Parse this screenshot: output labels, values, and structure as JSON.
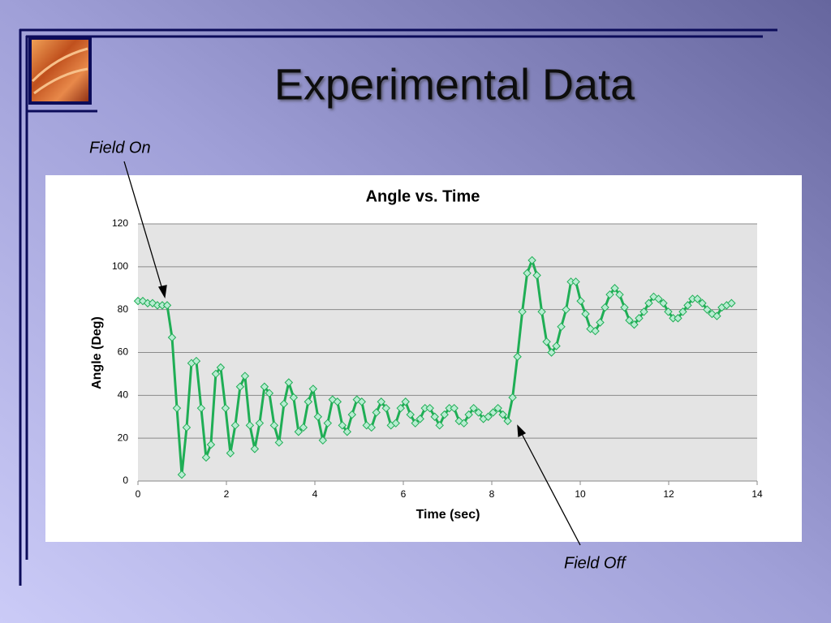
{
  "slide": {
    "title": "Experimental Data"
  },
  "chart_data": {
    "type": "line",
    "title": "Angle vs. Time",
    "x_label": "Time (sec)",
    "y_label": "Angle (Deg)",
    "annotations": [
      "Field On",
      "Field Off"
    ],
    "color": "#1fae55",
    "marker_fill": "#b8ecd2",
    "grid": true,
    "xlim": [
      0,
      14
    ],
    "xticks": [
      0,
      2,
      4,
      6,
      8,
      10,
      12,
      14
    ],
    "ylim": [
      0,
      120
    ],
    "yticks": [
      0,
      20,
      40,
      60,
      80,
      100,
      120
    ],
    "x": [
      0,
      0.11,
      0.22,
      0.33,
      0.44,
      0.55,
      0.66,
      0.77,
      0.88,
      0.99,
      1.1,
      1.21,
      1.32,
      1.43,
      1.54,
      1.65,
      1.76,
      1.87,
      1.98,
      2.09,
      2.2,
      2.31,
      2.42,
      2.53,
      2.64,
      2.75,
      2.86,
      2.97,
      3.08,
      3.19,
      3.3,
      3.41,
      3.52,
      3.63,
      3.74,
      3.85,
      3.96,
      4.07,
      4.18,
      4.29,
      4.4,
      4.51,
      4.62,
      4.73,
      4.84,
      4.95,
      5.06,
      5.17,
      5.28,
      5.39,
      5.5,
      5.61,
      5.72,
      5.83,
      5.94,
      6.05,
      6.16,
      6.27,
      6.38,
      6.49,
      6.6,
      6.71,
      6.82,
      6.93,
      7.04,
      7.15,
      7.26,
      7.37,
      7.48,
      7.59,
      7.7,
      7.81,
      7.92,
      8.03,
      8.14,
      8.25,
      8.36,
      8.47,
      8.58,
      8.69,
      8.8,
      8.91,
      9.02,
      9.13,
      9.24,
      9.35,
      9.46,
      9.57,
      9.68,
      9.79,
      9.9,
      10.01,
      10.12,
      10.23,
      10.34,
      10.45,
      10.56,
      10.67,
      10.78,
      10.89,
      11,
      11.11,
      11.22,
      11.33,
      11.44,
      11.55,
      11.66,
      11.77,
      11.88,
      11.99,
      12.1,
      12.21,
      12.32,
      12.43,
      12.54,
      12.65,
      12.76,
      12.87,
      12.98,
      13.09,
      13.2,
      13.31,
      13.42
    ],
    "values": [
      84,
      84,
      83,
      83,
      82,
      82,
      82,
      67,
      34,
      3,
      25,
      55,
      56,
      34,
      11,
      17,
      50,
      53,
      34,
      13,
      26,
      44,
      49,
      26,
      15,
      27,
      44,
      41,
      26,
      18,
      36,
      46,
      39,
      23,
      25,
      37,
      43,
      30,
      19,
      27,
      38,
      37,
      26,
      23,
      31,
      38,
      37,
      26,
      25,
      32,
      37,
      34,
      26,
      27,
      34,
      37,
      31,
      27,
      29,
      34,
      34,
      30,
      26,
      31,
      34,
      34,
      28,
      27,
      31,
      34,
      32,
      29,
      30,
      32,
      34,
      31,
      28,
      39,
      58,
      79,
      97,
      103,
      96,
      79,
      65,
      60,
      63,
      72,
      80,
      93,
      93,
      84,
      78,
      71,
      70,
      74,
      81,
      87,
      90,
      87,
      81,
      75,
      73,
      76,
      79,
      83,
      86,
      85,
      83,
      79,
      76,
      76,
      79,
      82,
      85,
      85,
      83,
      80,
      78,
      77,
      81,
      82,
      83
    ]
  }
}
